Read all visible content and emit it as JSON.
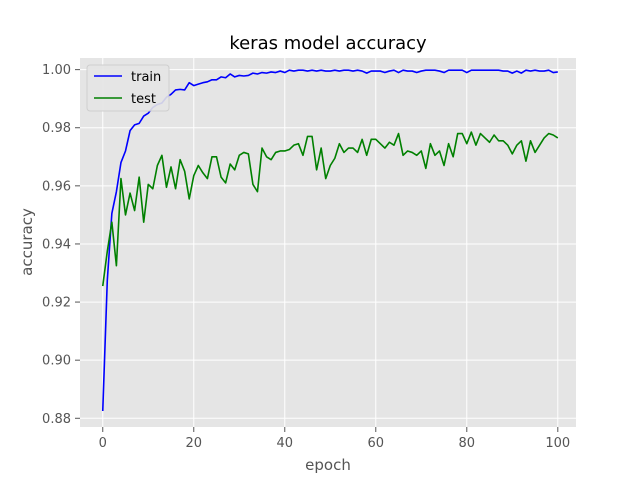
{
  "chart_data": {
    "type": "line",
    "title": "keras model accuracy",
    "xlabel": "epoch",
    "ylabel": "accuracy",
    "xlim": [
      -5,
      104
    ],
    "ylim": [
      0.877,
      1.004
    ],
    "xticks": [
      0,
      20,
      40,
      60,
      80,
      100
    ],
    "yticks": [
      0.88,
      0.9,
      0.92,
      0.94,
      0.96,
      0.98,
      1.0
    ],
    "xtick_labels": [
      "0",
      "20",
      "40",
      "60",
      "80",
      "100"
    ],
    "ytick_labels": [
      "0.88",
      "0.90",
      "0.92",
      "0.94",
      "0.96",
      "0.98",
      "1.00"
    ],
    "grid": true,
    "legend_position": "top-left",
    "colors": {
      "background": "#e5e5e5",
      "grid": "#ffffff",
      "train": "#0000ff",
      "test": "#008000"
    },
    "series": [
      {
        "name": "train",
        "values": [
          0.8825,
          0.9275,
          0.9505,
          0.958,
          0.968,
          0.972,
          0.979,
          0.981,
          0.9815,
          0.984,
          0.985,
          0.987,
          0.988,
          0.9885,
          0.9905,
          0.9915,
          0.993,
          0.9932,
          0.993,
          0.9955,
          0.9945,
          0.995,
          0.9955,
          0.9958,
          0.9965,
          0.9965,
          0.9975,
          0.9972,
          0.9985,
          0.9975,
          0.998,
          0.9978,
          0.998,
          0.9988,
          0.9985,
          0.999,
          0.9988,
          0.9992,
          0.999,
          0.9995,
          0.999,
          0.9998,
          0.9995,
          0.9998,
          0.9998,
          0.9995,
          0.9998,
          0.9995,
          0.9998,
          0.9995,
          0.9995,
          0.9998,
          0.9995,
          0.9998,
          0.9998,
          0.9995,
          0.9998,
          0.9995,
          0.9988,
          0.9995,
          0.9995,
          0.9995,
          0.999,
          0.9995,
          0.9998,
          0.999,
          0.9998,
          0.9995,
          0.9995,
          0.999,
          0.9995,
          0.9998,
          0.9998,
          0.9998,
          0.9995,
          0.999,
          0.9998,
          0.9998,
          0.9998,
          0.9998,
          0.999,
          0.9998,
          0.9998,
          0.9998,
          0.9998,
          0.9998,
          0.9998,
          0.9998,
          0.9995,
          0.9995,
          0.9988,
          0.9995,
          0.9988,
          0.9998,
          0.9995,
          0.9998,
          0.9995,
          0.9995,
          0.9998,
          0.999,
          0.9992
        ]
      },
      {
        "name": "test",
        "values": [
          0.9255,
          0.9375,
          0.9475,
          0.9325,
          0.9625,
          0.95,
          0.9575,
          0.9515,
          0.963,
          0.9475,
          0.9605,
          0.959,
          0.967,
          0.9705,
          0.9595,
          0.9665,
          0.959,
          0.969,
          0.965,
          0.9555,
          0.9635,
          0.967,
          0.9645,
          0.9625,
          0.97,
          0.97,
          0.963,
          0.961,
          0.9675,
          0.9655,
          0.9705,
          0.9715,
          0.971,
          0.9605,
          0.958,
          0.973,
          0.97,
          0.969,
          0.9715,
          0.972,
          0.972,
          0.9725,
          0.974,
          0.9745,
          0.9705,
          0.977,
          0.977,
          0.9655,
          0.973,
          0.9625,
          0.967,
          0.9695,
          0.9745,
          0.9715,
          0.973,
          0.973,
          0.9715,
          0.976,
          0.9705,
          0.976,
          0.976,
          0.9745,
          0.973,
          0.975,
          0.974,
          0.978,
          0.9705,
          0.972,
          0.9715,
          0.9705,
          0.972,
          0.966,
          0.9745,
          0.9705,
          0.972,
          0.967,
          0.9745,
          0.97,
          0.978,
          0.978,
          0.9745,
          0.9785,
          0.974,
          0.978,
          0.9765,
          0.975,
          0.9775,
          0.9755,
          0.9755,
          0.974,
          0.971,
          0.974,
          0.9755,
          0.9685,
          0.9755,
          0.9715,
          0.974,
          0.9765,
          0.978,
          0.9775,
          0.9765
        ]
      }
    ]
  }
}
